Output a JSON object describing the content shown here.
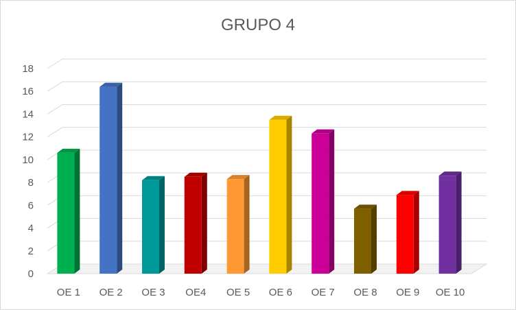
{
  "chart_data": {
    "type": "bar",
    "title": "GRUPO 4",
    "xlabel": "",
    "ylabel": "",
    "categories": [
      "OE 1",
      "OE 2",
      "OE 3",
      "OE4",
      "OE 5",
      "OE 6",
      "OE 7",
      "OE 8",
      "OE 9",
      "OE 10"
    ],
    "values": [
      10.6,
      16.4,
      8.2,
      8.5,
      8.3,
      13.5,
      12.3,
      5.7,
      6.9,
      8.6
    ],
    "ylim": [
      0,
      18
    ],
    "yticks": [
      "0",
      "2",
      "4",
      "6",
      "8",
      "10",
      "12",
      "14",
      "16",
      "18"
    ],
    "grid": true,
    "legend": "none",
    "colors": [
      "#00b050",
      "#4472c4",
      "#009999",
      "#c00000",
      "#ff9933",
      "#ffcc00",
      "#cc0099",
      "#7f6000",
      "#ff0000",
      "#7030a0"
    ]
  }
}
